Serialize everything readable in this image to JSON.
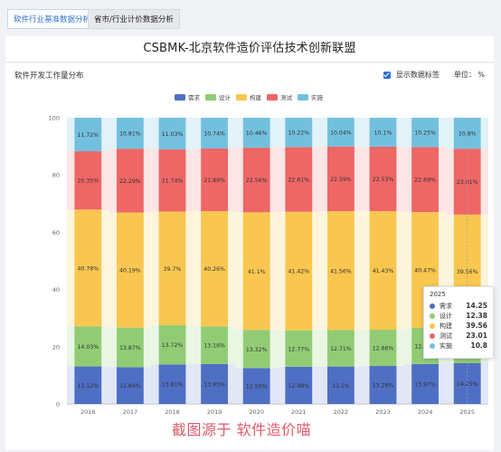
{
  "tabs": [
    {
      "label": "软件行业基准数据分析",
      "active": true
    },
    {
      "label": "省市/行业计价数据分析",
      "active": false
    }
  ],
  "header": {
    "title": "CSBMK-北京软件造价评估技术创新联盟"
  },
  "panel": {
    "title": "软件开发工作量分布",
    "show_labels_text": "显示数据标签",
    "show_labels_checked": true,
    "unit_text": "单位： %"
  },
  "tooltip": {
    "title": "2025",
    "rows": [
      {
        "name": "需求",
        "value": "14.25",
        "color": "#4e6fc4"
      },
      {
        "name": "设计",
        "value": "12.38",
        "color": "#91cc75"
      },
      {
        "name": "构建",
        "value": "39.56",
        "color": "#f9c74f"
      },
      {
        "name": "测试",
        "value": "23.01",
        "color": "#ee6666"
      },
      {
        "name": "实施",
        "value": "10.8",
        "color": "#73c0de"
      }
    ]
  },
  "watermark": "截图源于 软件造价喵",
  "chart_data": {
    "type": "bar",
    "stacked": true,
    "categories": [
      "2016",
      "2017",
      "2018",
      "2019",
      "2020",
      "2021",
      "2022",
      "2023",
      "2024",
      "2025"
    ],
    "series": [
      {
        "name": "需求",
        "color": "#4e6fc4",
        "values": [
          13.12,
          12.84,
          13.81,
          13.95,
          12.56,
          12.98,
          13.1,
          13.28,
          13.97,
          14.25
        ]
      },
      {
        "name": "设计",
        "color": "#91cc75",
        "values": [
          14.03,
          13.87,
          13.72,
          13.16,
          13.32,
          12.77,
          12.71,
          12.66,
          12.62,
          12.38
        ]
      },
      {
        "name": "构建",
        "color": "#f9c74f",
        "values": [
          40.78,
          40.19,
          39.7,
          40.26,
          41.1,
          41.42,
          41.56,
          41.43,
          40.47,
          39.56
        ]
      },
      {
        "name": "测试",
        "color": "#ee6666",
        "values": [
          20.35,
          22.29,
          21.74,
          21.89,
          22.56,
          22.61,
          22.59,
          22.53,
          22.69,
          23.01
        ]
      },
      {
        "name": "实施",
        "color": "#73c0de",
        "values": [
          11.72,
          10.81,
          11.03,
          10.74,
          10.46,
          10.22,
          10.04,
          10.1,
          10.25,
          10.8
        ]
      }
    ],
    "data_labels": [
      [
        "13.12%",
        "12.84%",
        "13.81%",
        "13.95%",
        "12.56%",
        "12.98%",
        "13.1%",
        "13.28%",
        "13.97%",
        "14.25%"
      ],
      [
        "14.03%",
        "13.87%",
        "13.72%",
        "13.16%",
        "13.32%",
        "12.77%",
        "12.71%",
        "12.66%",
        "12.62%",
        "12.38"
      ],
      [
        "40.78%",
        "40.19%",
        "39.7%",
        "40.26%",
        "41.1%",
        "41.42%",
        "41.56%",
        "41.43%",
        "40.47%",
        "39.56%"
      ],
      [
        "20.35%",
        "22.29%",
        "21.74%",
        "21.89%",
        "22.56%",
        "22.61%",
        "22.59%",
        "22.53%",
        "22.69%",
        "23.01%"
      ],
      [
        "11.72%",
        "10.81%",
        "11.03%",
        "10.74%",
        "10.46%",
        "10.22%",
        "10.04%",
        "10.1%",
        "10.25%",
        "10.8%"
      ]
    ],
    "ylim": [
      0,
      100
    ],
    "yticks": [
      0,
      20,
      40,
      60,
      80,
      100
    ],
    "legend_position": "top",
    "highlighted_category": "2025",
    "grid": false
  }
}
